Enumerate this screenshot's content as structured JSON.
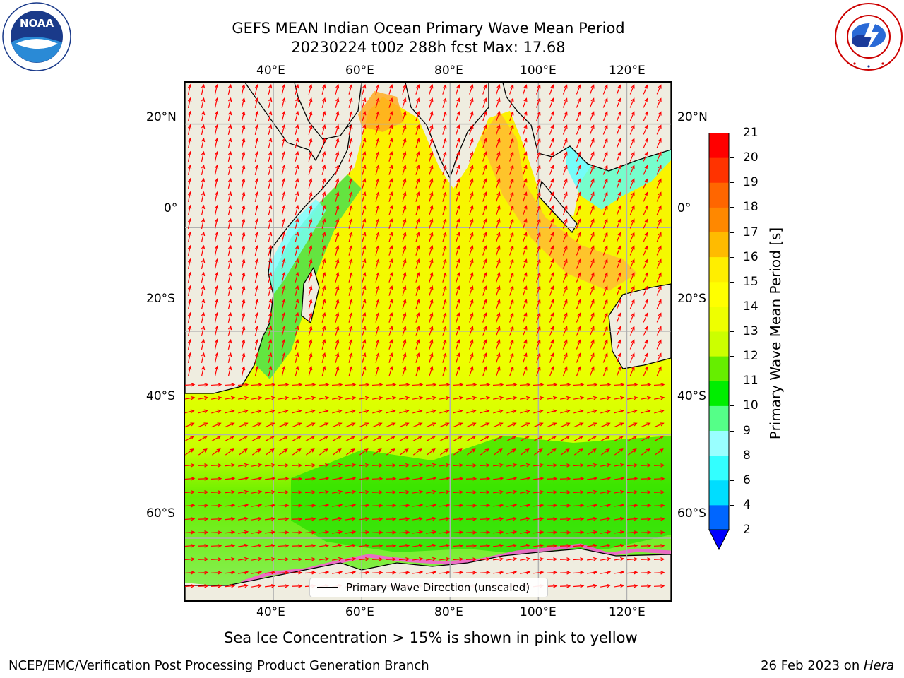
{
  "title": {
    "line1": "GEFS MEAN Indian Ocean Primary Wave Mean Period",
    "line2": "20230224 t00z 288h fcst   Max: 17.68"
  },
  "map": {
    "lon_ticks": [
      "40°E",
      "60°E",
      "80°E",
      "100°E",
      "120°E"
    ],
    "lat_ticks": [
      "20°N",
      "0°",
      "20°S",
      "40°S",
      "60°S"
    ],
    "lon_range": [
      20,
      130
    ],
    "lat_range": [
      -72,
      28
    ],
    "colors": {
      "land": "#efede0",
      "grid": "#b0b0b0",
      "arrow": "#ff0000",
      "coast": "#000000"
    }
  },
  "legend": {
    "label": "Primary Wave Direction (unscaled)"
  },
  "colorbar": {
    "label": "Primary Wave Mean Period [s]",
    "ticks": [
      "2",
      "4",
      "6",
      "8",
      "9",
      "10",
      "11",
      "12",
      "13",
      "14",
      "15",
      "16",
      "17",
      "18",
      "19",
      "20",
      "21"
    ],
    "colors": [
      "#0066ff",
      "#00ddff",
      "#33ffff",
      "#99ffff",
      "#55ff88",
      "#00ee00",
      "#66ee00",
      "#ccff00",
      "#eeff00",
      "#ffff00",
      "#ffee00",
      "#ffbb00",
      "#ff8800",
      "#ff6600",
      "#ff3300",
      "#ff0000"
    ],
    "extend_color": "#0000ff"
  },
  "note": "Sea Ice Concentration > 15% is shown in pink to yellow",
  "footer": {
    "left": "NCEP/EMC/Verification Post Processing Product Generation Branch",
    "date": "26 Feb 2023 on ",
    "host": "Hera"
  },
  "logos": {
    "left": "NOAA",
    "right": "NATIONAL WEATHER SERVICE"
  }
}
